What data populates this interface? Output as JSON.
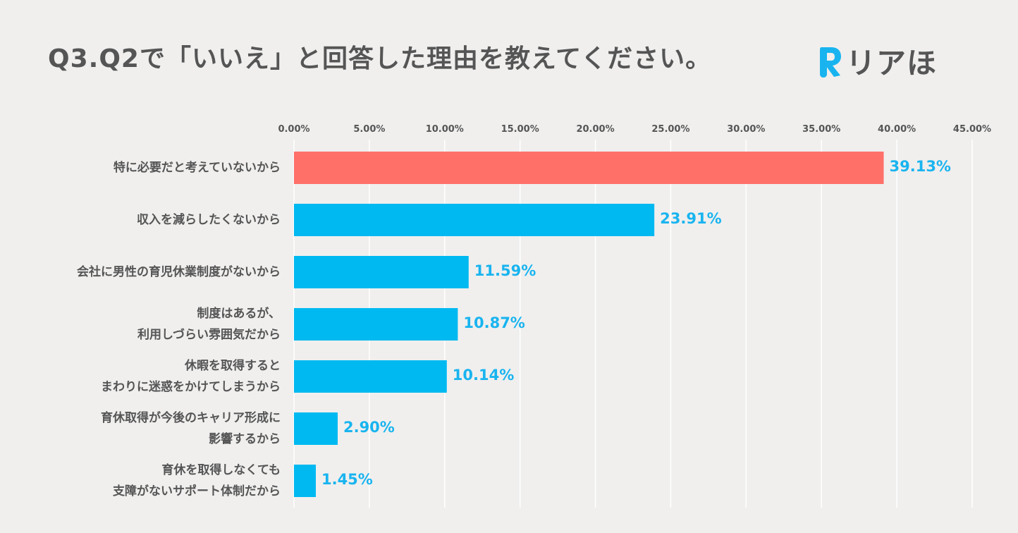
{
  "title": "Q3.Q2で「いいえ」と回答した理由を教えてください。",
  "logo": {
    "text": "リアほ",
    "icon": "r-logo-icon"
  },
  "colors": {
    "highlight": "#ff7069",
    "bar": "#00b9f1",
    "value": "#19b4ef",
    "grid": "#ffffff",
    "text": "#555555"
  },
  "chart_data": {
    "type": "bar",
    "orientation": "horizontal",
    "title": "Q3.Q2で「いいえ」と回答した理由を教えてください。",
    "xlim": [
      0,
      45
    ],
    "ticks": [
      0,
      5,
      10,
      15,
      20,
      25,
      30,
      35,
      40,
      45
    ],
    "tick_labels": [
      "0.00%",
      "5.00%",
      "10.00%",
      "15.00%",
      "20.00%",
      "25.00%",
      "30.00%",
      "35.00%",
      "40.00%",
      "45.00%"
    ],
    "tick_position": "top",
    "grid": true,
    "categories": [
      [
        "特に必要だと考えていないから"
      ],
      [
        "収入を減らしたくないから"
      ],
      [
        "会社に男性の育児休業制度がないから"
      ],
      [
        "制度はあるが、",
        "利用しづらい雰囲気だから"
      ],
      [
        "休暇を取得すると",
        "まわりに迷惑をかけてしまうから"
      ],
      [
        "育休取得が今後のキャリア形成に",
        "影響するから"
      ],
      [
        "育休を取得しなくても",
        "支障がないサポート体制だから"
      ]
    ],
    "values": [
      39.13,
      23.91,
      11.59,
      10.87,
      10.14,
      2.9,
      1.45
    ],
    "value_labels": [
      "39.13%",
      "23.91%",
      "11.59%",
      "10.87%",
      "10.14%",
      "2.90%",
      "1.45%"
    ],
    "highlight_index": 0
  }
}
